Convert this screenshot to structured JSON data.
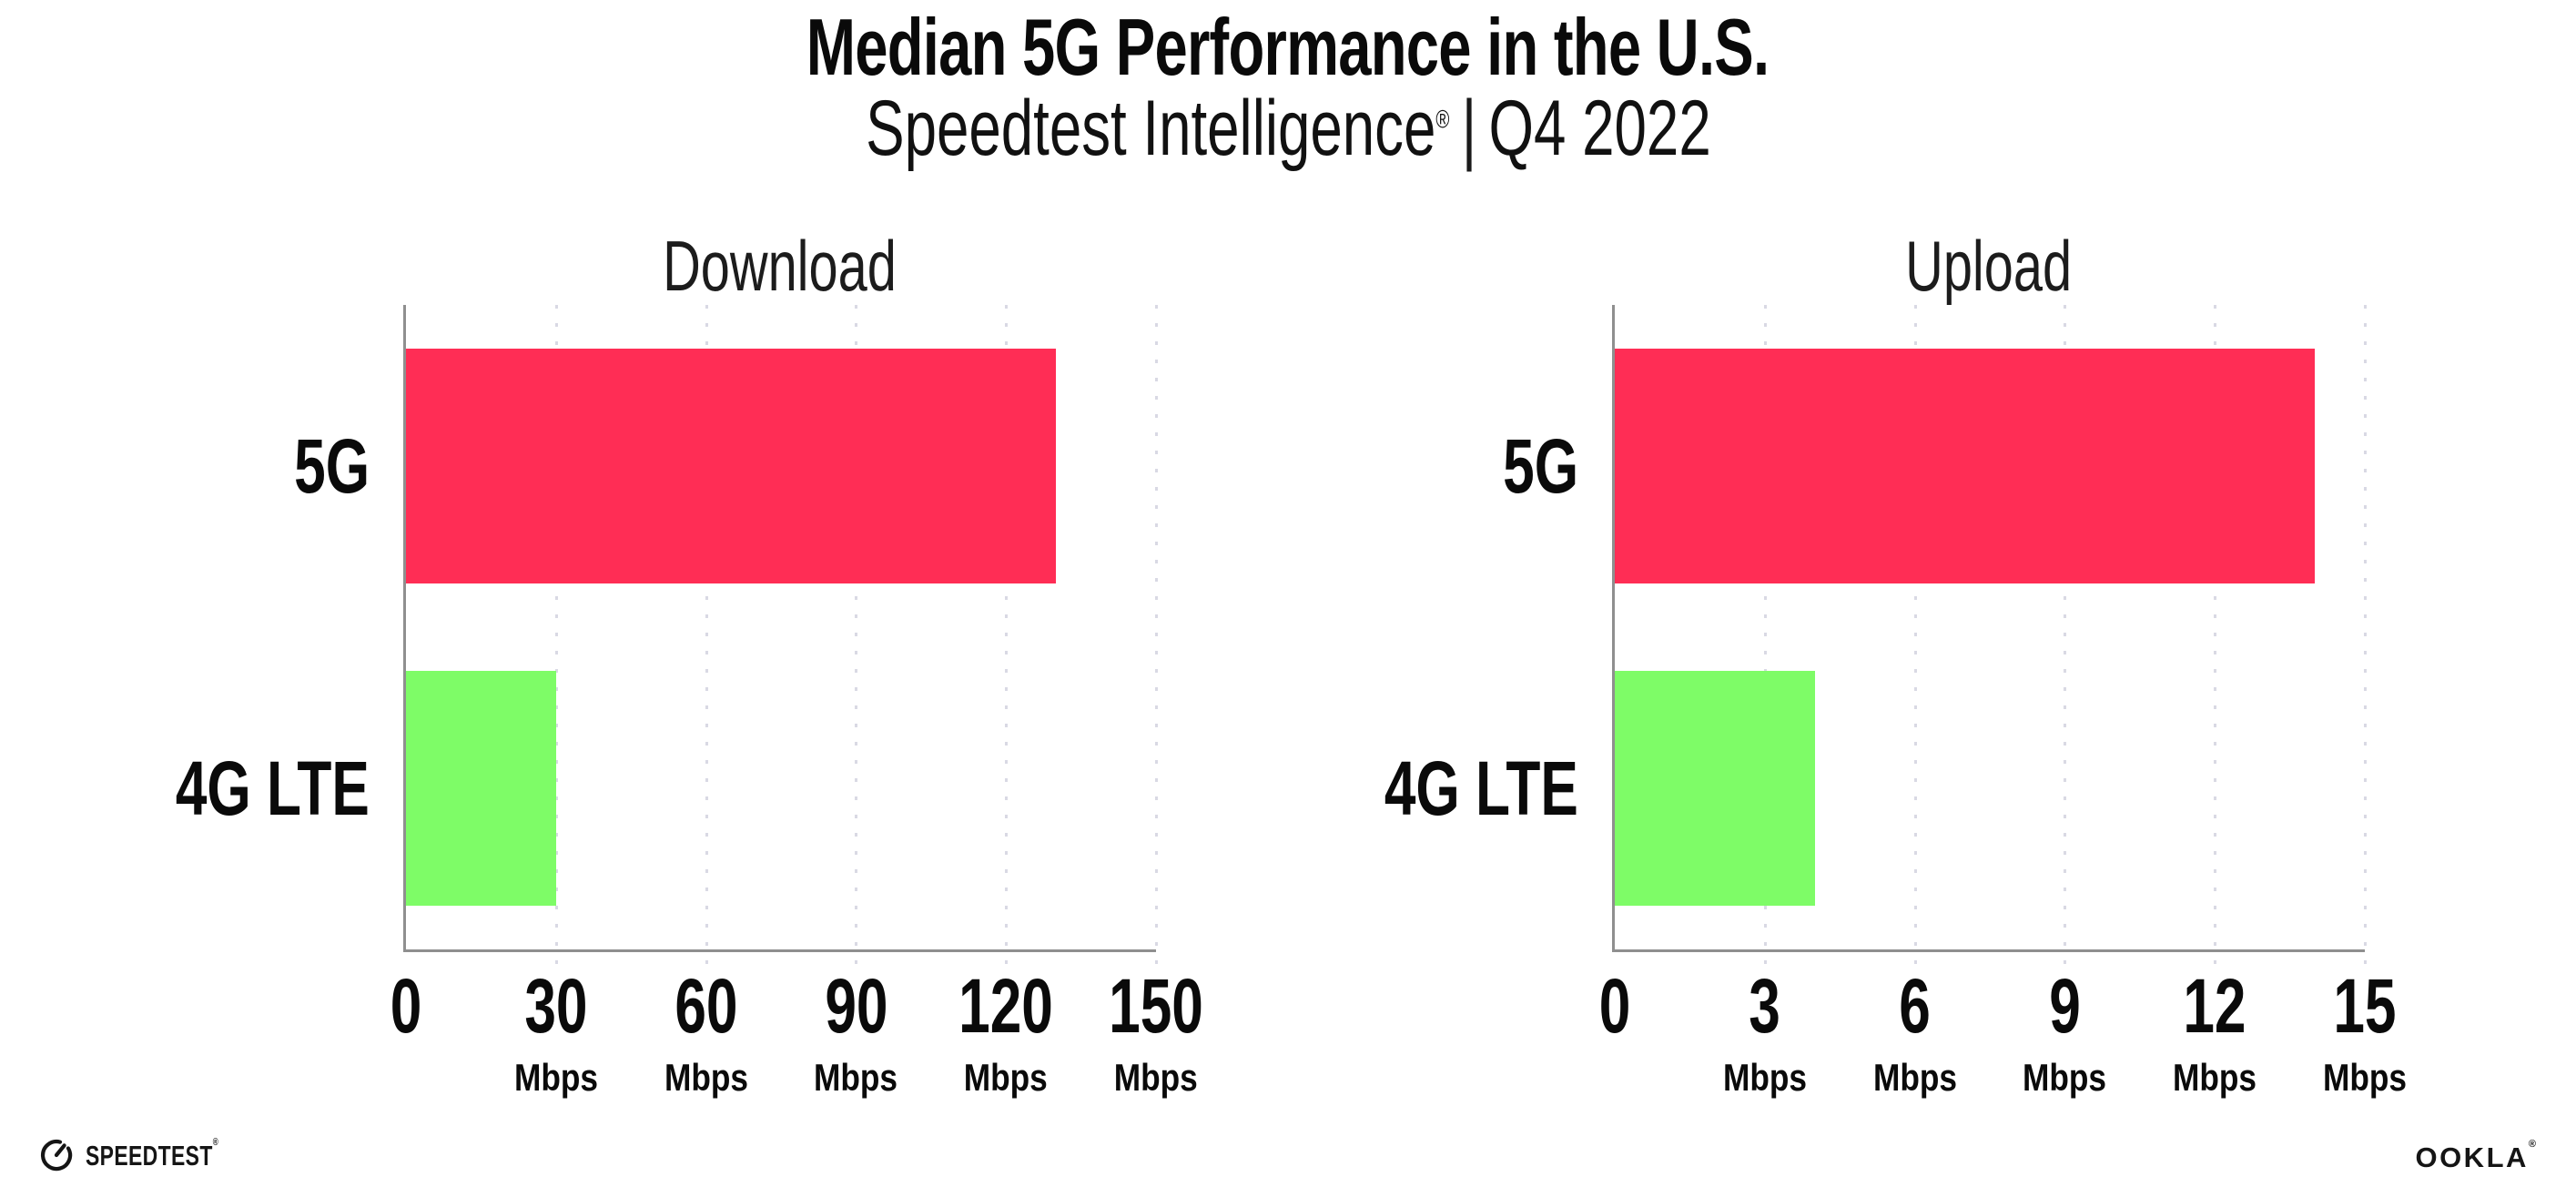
{
  "header": {
    "title": "Median 5G Performance in the U.S.",
    "subtitle_brand": "Speedtest Intelligence",
    "subtitle_reg": "®",
    "subtitle_divider": "|",
    "subtitle_period": "Q4 2022"
  },
  "footer": {
    "speedtest_label": "SPEEDTEST",
    "speedtest_reg": "®",
    "ookla_label": "OOKLA",
    "ookla_reg": "®",
    "gauge_icon": "speedometer-gauge"
  },
  "colors": {
    "bar_5g": "#FF2D55",
    "bar_4g_lte": "#7EFC67",
    "axis_line": "#8F8F8F",
    "gridline": "#D9D9E4",
    "text": "#0D0D0D"
  },
  "chart_data": [
    {
      "type": "bar",
      "orientation": "horizontal",
      "title": "Download",
      "categories": [
        "5G",
        "4G LTE"
      ],
      "values": [
        130,
        30
      ],
      "unit": "Mbps",
      "xlim": [
        0,
        150
      ],
      "xticks": [
        0,
        30,
        60,
        90,
        120,
        150
      ],
      "bar_colors": [
        "#FF2D55",
        "#7EFC67"
      ],
      "grid": "dotted-vertical",
      "legend": "none"
    },
    {
      "type": "bar",
      "orientation": "horizontal",
      "title": "Upload",
      "categories": [
        "5G",
        "4G LTE"
      ],
      "values": [
        14,
        4
      ],
      "unit": "Mbps",
      "xlim": [
        0,
        15
      ],
      "xticks": [
        0,
        3,
        6,
        9,
        12,
        15
      ],
      "bar_colors": [
        "#FF2D55",
        "#7EFC67"
      ],
      "grid": "dotted-vertical",
      "legend": "none"
    }
  ]
}
